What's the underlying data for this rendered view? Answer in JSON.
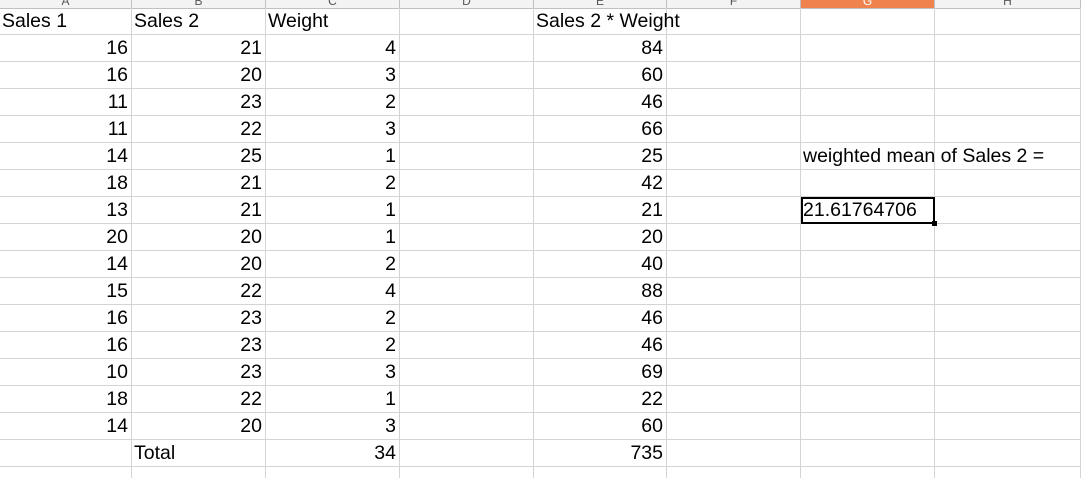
{
  "spreadsheet": {
    "column_headers": [
      "A",
      "B",
      "C",
      "D",
      "E",
      "F",
      "G",
      "H"
    ],
    "selected_column": "G",
    "header_row": {
      "A": "Sales 1",
      "B": "Sales 2",
      "C": "Weight",
      "D": "",
      "E": "Sales 2 * Weight"
    },
    "rows": [
      {
        "A": "16",
        "B": "21",
        "C": "4",
        "E": "84"
      },
      {
        "A": "16",
        "B": "20",
        "C": "3",
        "E": "60"
      },
      {
        "A": "11",
        "B": "23",
        "C": "2",
        "E": "46"
      },
      {
        "A": "11",
        "B": "22",
        "C": "3",
        "E": "66"
      },
      {
        "A": "14",
        "B": "25",
        "C": "1",
        "E": "25"
      },
      {
        "A": "18",
        "B": "21",
        "C": "2",
        "E": "42"
      },
      {
        "A": "13",
        "B": "21",
        "C": "1",
        "E": "21"
      },
      {
        "A": "20",
        "B": "20",
        "C": "1",
        "E": "20"
      },
      {
        "A": "14",
        "B": "20",
        "C": "2",
        "E": "40"
      },
      {
        "A": "15",
        "B": "22",
        "C": "4",
        "E": "88"
      },
      {
        "A": "16",
        "B": "23",
        "C": "2",
        "E": "46"
      },
      {
        "A": "16",
        "B": "23",
        "C": "2",
        "E": "46"
      },
      {
        "A": "10",
        "B": "23",
        "C": "3",
        "E": "69"
      },
      {
        "A": "18",
        "B": "22",
        "C": "1",
        "E": "22"
      },
      {
        "A": "14",
        "B": "20",
        "C": "3",
        "E": "60"
      }
    ],
    "total_row": {
      "label": "Total",
      "C": "34",
      "E": "735"
    },
    "weighted_mean_label": "weighted mean of Sales 2 =",
    "weighted_mean_value": "21.61764706",
    "active_cell": "G8"
  }
}
